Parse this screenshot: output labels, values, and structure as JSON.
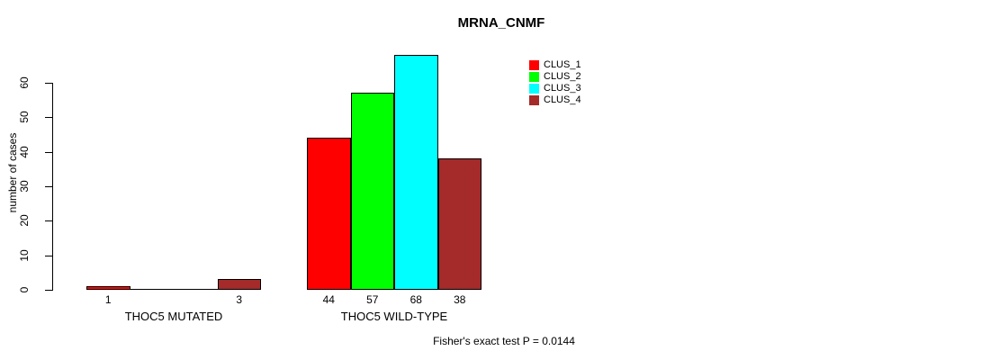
{
  "chart_data": {
    "type": "bar",
    "title": "MRNA_CNMF",
    "ylabel": "number of cases",
    "xlabel": "",
    "yticks": [
      0,
      10,
      20,
      30,
      40,
      50,
      60
    ],
    "ylim": [
      0,
      60
    ],
    "grid": false,
    "series": [
      "CLUS_1",
      "CLUS_2",
      "CLUS_3",
      "CLUS_4"
    ],
    "colors": [
      "#FF0000",
      "#00FF00",
      "#00FFFF",
      "#A52A2A"
    ],
    "groups": [
      {
        "label": "THOC5 MUTATED",
        "values": [
          1,
          0,
          0,
          3
        ]
      },
      {
        "label": "THOC5 WILD-TYPE",
        "values": [
          44,
          57,
          68,
          38
        ]
      }
    ],
    "legend": {
      "position": "top-right",
      "entries": [
        "CLUS_1",
        "CLUS_2",
        "CLUS_3",
        "CLUS_4"
      ]
    },
    "footnote": "Fisher's exact test P = 0.0144"
  }
}
